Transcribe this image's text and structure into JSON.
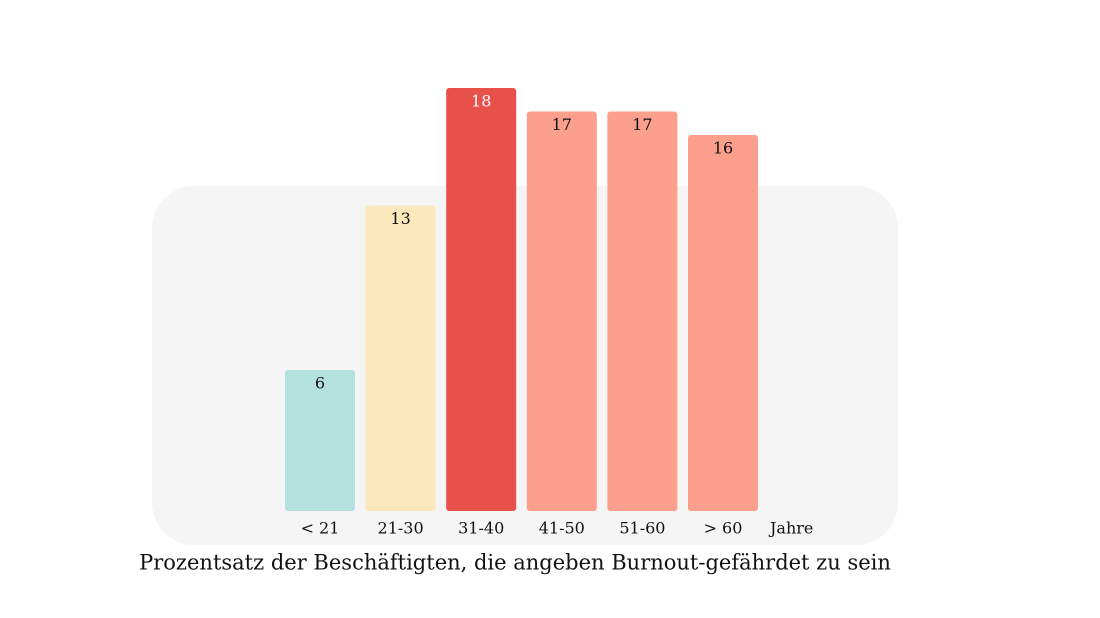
{
  "chart_data": {
    "type": "bar",
    "categories": [
      "< 21",
      "21-30",
      "31-40",
      "41-50",
      "51-60",
      "> 60"
    ],
    "values": [
      6,
      13,
      18,
      17,
      17,
      16
    ],
    "colors": [
      "#b3e2df",
      "#fde8bb",
      "#e8504a",
      "#fc9f8c",
      "#fc9f8c",
      "#fc9f8c"
    ],
    "x_label": "Jahre",
    "caption": "Prozentsatz der Beschäftigten, die angeben Burnout-gefährdet zu sein",
    "ylim": [
      0,
      18
    ]
  }
}
